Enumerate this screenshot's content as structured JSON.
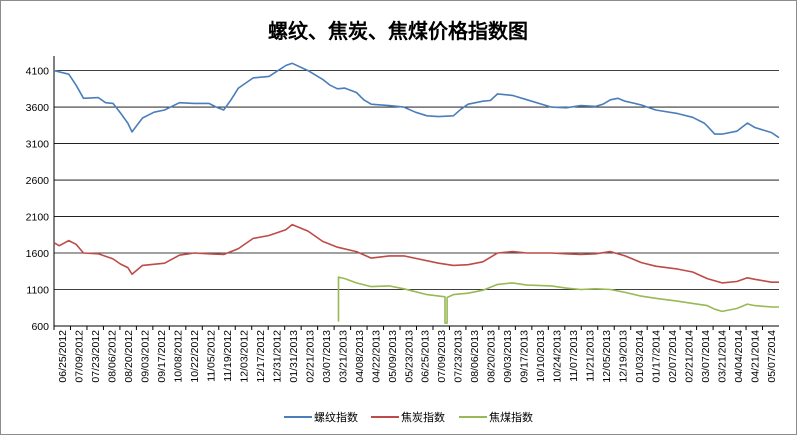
{
  "chart_data": {
    "type": "line",
    "title": "螺纹、焦炭、焦煤价格指数图",
    "xlabel": "",
    "ylabel": "",
    "ylim": [
      600,
      4300
    ],
    "yticks": [
      600,
      1100,
      1600,
      2100,
      2600,
      3100,
      3600,
      4100
    ],
    "ytick_labels": [
      "600",
      "1100",
      "1600",
      "2100",
      "2600",
      "3100",
      "3600",
      "4100"
    ],
    "xlim": [
      "06/25/2012",
      "05/14/2014"
    ],
    "xtick_labels": [
      "06/25/2012",
      "07/09/2012",
      "07/23/2012",
      "08/06/2012",
      "08/20/2012",
      "09/03/2012",
      "09/17/2012",
      "10/08/2012",
      "10/22/2012",
      "11/05/2012",
      "11/19/2012",
      "12/03/2012",
      "12/17/2012",
      "12/31/2012",
      "01/31/2013",
      "02/21/2013",
      "03/07/2013",
      "03/21/2013",
      "04/08/2013",
      "04/22/2013",
      "05/09/2013",
      "05/23/2013",
      "06/25/2013",
      "07/09/2013",
      "07/23/2013",
      "08/06/2013",
      "08/20/2013",
      "09/03/2013",
      "09/17/2013",
      "10/10/2013",
      "10/24/2013",
      "11/07/2013",
      "11/21/2013",
      "12/05/2013",
      "12/19/2013",
      "01/03/2014",
      "01/17/2014",
      "02/07/2014",
      "02/21/2014",
      "03/07/2014",
      "03/21/2014",
      "04/04/2014",
      "04/21/2014",
      "05/07/2014"
    ],
    "grid": "horizontal",
    "legend": "bottom",
    "series": [
      {
        "name": "螺纹指数",
        "color": "#4a7ebb",
        "points": [
          [
            "06/25/2012",
            4100
          ],
          [
            "07/09/2012",
            4050
          ],
          [
            "07/16/2012",
            3900
          ],
          [
            "07/23/2012",
            3720
          ],
          [
            "08/06/2012",
            3730
          ],
          [
            "08/13/2012",
            3660
          ],
          [
            "08/20/2012",
            3650
          ],
          [
            "08/27/2012",
            3520
          ],
          [
            "09/03/2012",
            3380
          ],
          [
            "09/07/2012",
            3260
          ],
          [
            "09/17/2012",
            3450
          ],
          [
            "09/28/2012",
            3530
          ],
          [
            "10/08/2012",
            3560
          ],
          [
            "10/22/2012",
            3660
          ],
          [
            "11/05/2012",
            3650
          ],
          [
            "11/19/2012",
            3650
          ],
          [
            "11/26/2012",
            3600
          ],
          [
            "12/03/2012",
            3560
          ],
          [
            "12/10/2012",
            3700
          ],
          [
            "12/17/2012",
            3860
          ],
          [
            "12/31/2012",
            4000
          ],
          [
            "01/15/2013",
            4020
          ],
          [
            "01/31/2013",
            4170
          ],
          [
            "02/06/2013",
            4200
          ],
          [
            "02/21/2013",
            4100
          ],
          [
            "03/07/2013",
            3980
          ],
          [
            "03/14/2013",
            3900
          ],
          [
            "03/21/2013",
            3850
          ],
          [
            "03/28/2013",
            3860
          ],
          [
            "04/08/2013",
            3800
          ],
          [
            "04/15/2013",
            3700
          ],
          [
            "04/22/2013",
            3640
          ],
          [
            "05/09/2013",
            3620
          ],
          [
            "05/23/2013",
            3600
          ],
          [
            "06/03/2013",
            3530
          ],
          [
            "06/14/2013",
            3480
          ],
          [
            "06/25/2013",
            3470
          ],
          [
            "07/09/2013",
            3480
          ],
          [
            "07/16/2013",
            3570
          ],
          [
            "07/23/2013",
            3640
          ],
          [
            "08/06/2013",
            3680
          ],
          [
            "08/13/2013",
            3690
          ],
          [
            "08/20/2013",
            3780
          ],
          [
            "09/03/2013",
            3760
          ],
          [
            "09/17/2013",
            3700
          ],
          [
            "10/10/2013",
            3600
          ],
          [
            "10/24/2013",
            3590
          ],
          [
            "11/07/2013",
            3620
          ],
          [
            "11/21/2013",
            3610
          ],
          [
            "11/28/2013",
            3640
          ],
          [
            "12/05/2013",
            3700
          ],
          [
            "12/12/2013",
            3720
          ],
          [
            "12/19/2013",
            3680
          ],
          [
            "01/03/2014",
            3630
          ],
          [
            "01/17/2014",
            3560
          ],
          [
            "02/07/2014",
            3510
          ],
          [
            "02/21/2014",
            3460
          ],
          [
            "03/04/2014",
            3380
          ],
          [
            "03/07/2014",
            3340
          ],
          [
            "03/14/2014",
            3230
          ],
          [
            "03/21/2014",
            3230
          ],
          [
            "04/04/2014",
            3270
          ],
          [
            "04/14/2014",
            3380
          ],
          [
            "04/21/2014",
            3320
          ],
          [
            "05/07/2014",
            3250
          ],
          [
            "05/14/2014",
            3180
          ]
        ]
      },
      {
        "name": "焦炭指数",
        "color": "#be4b48",
        "points": [
          [
            "06/25/2012",
            1740
          ],
          [
            "06/30/2012",
            1700
          ],
          [
            "07/09/2012",
            1770
          ],
          [
            "07/16/2012",
            1720
          ],
          [
            "07/23/2012",
            1600
          ],
          [
            "08/06/2012",
            1590
          ],
          [
            "08/20/2012",
            1520
          ],
          [
            "08/27/2012",
            1450
          ],
          [
            "09/03/2012",
            1400
          ],
          [
            "09/07/2012",
            1310
          ],
          [
            "09/17/2012",
            1430
          ],
          [
            "10/08/2012",
            1460
          ],
          [
            "10/22/2012",
            1570
          ],
          [
            "11/05/2012",
            1600
          ],
          [
            "11/19/2012",
            1590
          ],
          [
            "12/03/2012",
            1580
          ],
          [
            "12/17/2012",
            1660
          ],
          [
            "12/31/2012",
            1800
          ],
          [
            "01/15/2013",
            1840
          ],
          [
            "01/31/2013",
            1920
          ],
          [
            "02/06/2013",
            1990
          ],
          [
            "02/21/2013",
            1900
          ],
          [
            "03/07/2013",
            1760
          ],
          [
            "03/21/2013",
            1680
          ],
          [
            "04/08/2013",
            1620
          ],
          [
            "04/22/2013",
            1530
          ],
          [
            "05/09/2013",
            1560
          ],
          [
            "05/23/2013",
            1560
          ],
          [
            "06/25/2013",
            1460
          ],
          [
            "07/09/2013",
            1430
          ],
          [
            "07/23/2013",
            1440
          ],
          [
            "08/06/2013",
            1480
          ],
          [
            "08/20/2013",
            1600
          ],
          [
            "09/03/2013",
            1620
          ],
          [
            "09/17/2013",
            1600
          ],
          [
            "10/10/2013",
            1600
          ],
          [
            "10/24/2013",
            1590
          ],
          [
            "11/07/2013",
            1580
          ],
          [
            "11/21/2013",
            1590
          ],
          [
            "12/05/2013",
            1620
          ],
          [
            "12/19/2013",
            1560
          ],
          [
            "01/03/2014",
            1470
          ],
          [
            "01/17/2014",
            1420
          ],
          [
            "02/07/2014",
            1380
          ],
          [
            "02/21/2014",
            1340
          ],
          [
            "03/07/2014",
            1250
          ],
          [
            "03/21/2014",
            1190
          ],
          [
            "04/04/2014",
            1210
          ],
          [
            "04/14/2014",
            1260
          ],
          [
            "04/21/2014",
            1240
          ],
          [
            "05/07/2014",
            1200
          ],
          [
            "05/14/2014",
            1200
          ]
        ]
      },
      {
        "name": "焦煤指数",
        "color": "#98b954",
        "points": [
          [
            "03/22/2013",
            660
          ],
          [
            "03/22/2013",
            1270
          ],
          [
            "03/28/2013",
            1250
          ],
          [
            "04/08/2013",
            1190
          ],
          [
            "04/22/2013",
            1140
          ],
          [
            "05/09/2013",
            1150
          ],
          [
            "05/23/2013",
            1110
          ],
          [
            "06/14/2013",
            1030
          ],
          [
            "07/01/2013",
            1000
          ],
          [
            "07/01/2013",
            640
          ],
          [
            "07/03/2013",
            640
          ],
          [
            "07/03/2013",
            990
          ],
          [
            "07/09/2013",
            1030
          ],
          [
            "07/23/2013",
            1050
          ],
          [
            "08/06/2013",
            1090
          ],
          [
            "08/20/2013",
            1170
          ],
          [
            "09/03/2013",
            1190
          ],
          [
            "09/17/2013",
            1160
          ],
          [
            "10/10/2013",
            1150
          ],
          [
            "10/24/2013",
            1120
          ],
          [
            "11/07/2013",
            1100
          ],
          [
            "11/21/2013",
            1110
          ],
          [
            "12/05/2013",
            1100
          ],
          [
            "12/19/2013",
            1060
          ],
          [
            "01/03/2014",
            1010
          ],
          [
            "01/17/2014",
            980
          ],
          [
            "02/07/2014",
            940
          ],
          [
            "02/21/2014",
            910
          ],
          [
            "03/07/2014",
            880
          ],
          [
            "03/14/2014",
            830
          ],
          [
            "03/21/2014",
            800
          ],
          [
            "04/04/2014",
            840
          ],
          [
            "04/14/2014",
            900
          ],
          [
            "04/21/2014",
            880
          ],
          [
            "05/07/2014",
            860
          ],
          [
            "05/14/2014",
            860
          ]
        ]
      }
    ]
  }
}
